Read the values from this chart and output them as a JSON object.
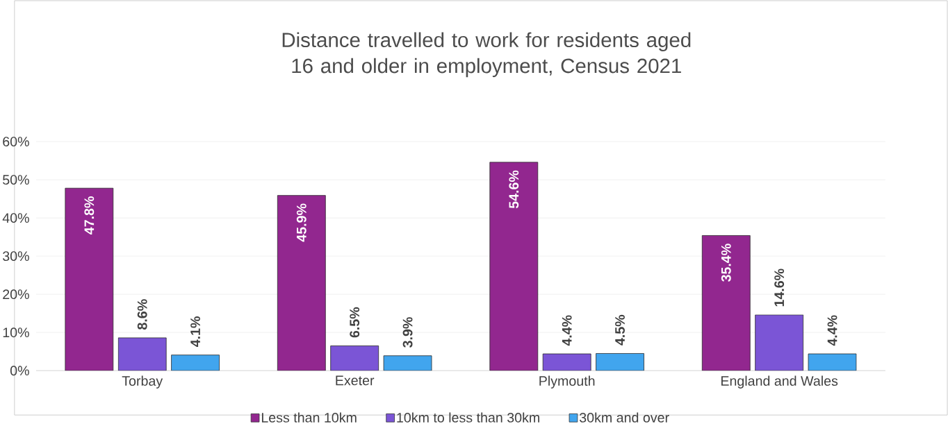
{
  "chart_data": {
    "type": "bar",
    "title": "Distance travelled to work for residents aged 16 and older in employment, Census 2021",
    "categories": [
      "Torbay",
      "Exeter",
      "Plymouth",
      "England and Wales"
    ],
    "series": [
      {
        "name": "Less than 10km",
        "color": "#92278f",
        "values": [
          47.8,
          45.9,
          54.6,
          35.4
        ],
        "value_labels": [
          "47.8%",
          "45.9%",
          "54.6%",
          "35.4%"
        ]
      },
      {
        "name": "10km to less than 30km",
        "color": "#7b55d6",
        "values": [
          8.6,
          6.5,
          4.4,
          14.6
        ],
        "value_labels": [
          "8.6%",
          "6.5%",
          "4.4%",
          "14.6%"
        ]
      },
      {
        "name": "30km and over",
        "color": "#41a5ee",
        "values": [
          4.1,
          3.9,
          4.5,
          4.4
        ],
        "value_labels": [
          "4.1%",
          "3.9%",
          "4.5%",
          "4.4%"
        ]
      }
    ],
    "ylim": [
      0,
      60
    ],
    "yticks": [
      {
        "value": 0,
        "label": "0%"
      },
      {
        "value": 10,
        "label": "10%"
      },
      {
        "value": 20,
        "label": "20%"
      },
      {
        "value": 30,
        "label": "30%"
      },
      {
        "value": 40,
        "label": "40%"
      },
      {
        "value": 50,
        "label": "50%"
      },
      {
        "value": 60,
        "label": "60%"
      }
    ],
    "grid": "y",
    "legend": "bottom"
  }
}
